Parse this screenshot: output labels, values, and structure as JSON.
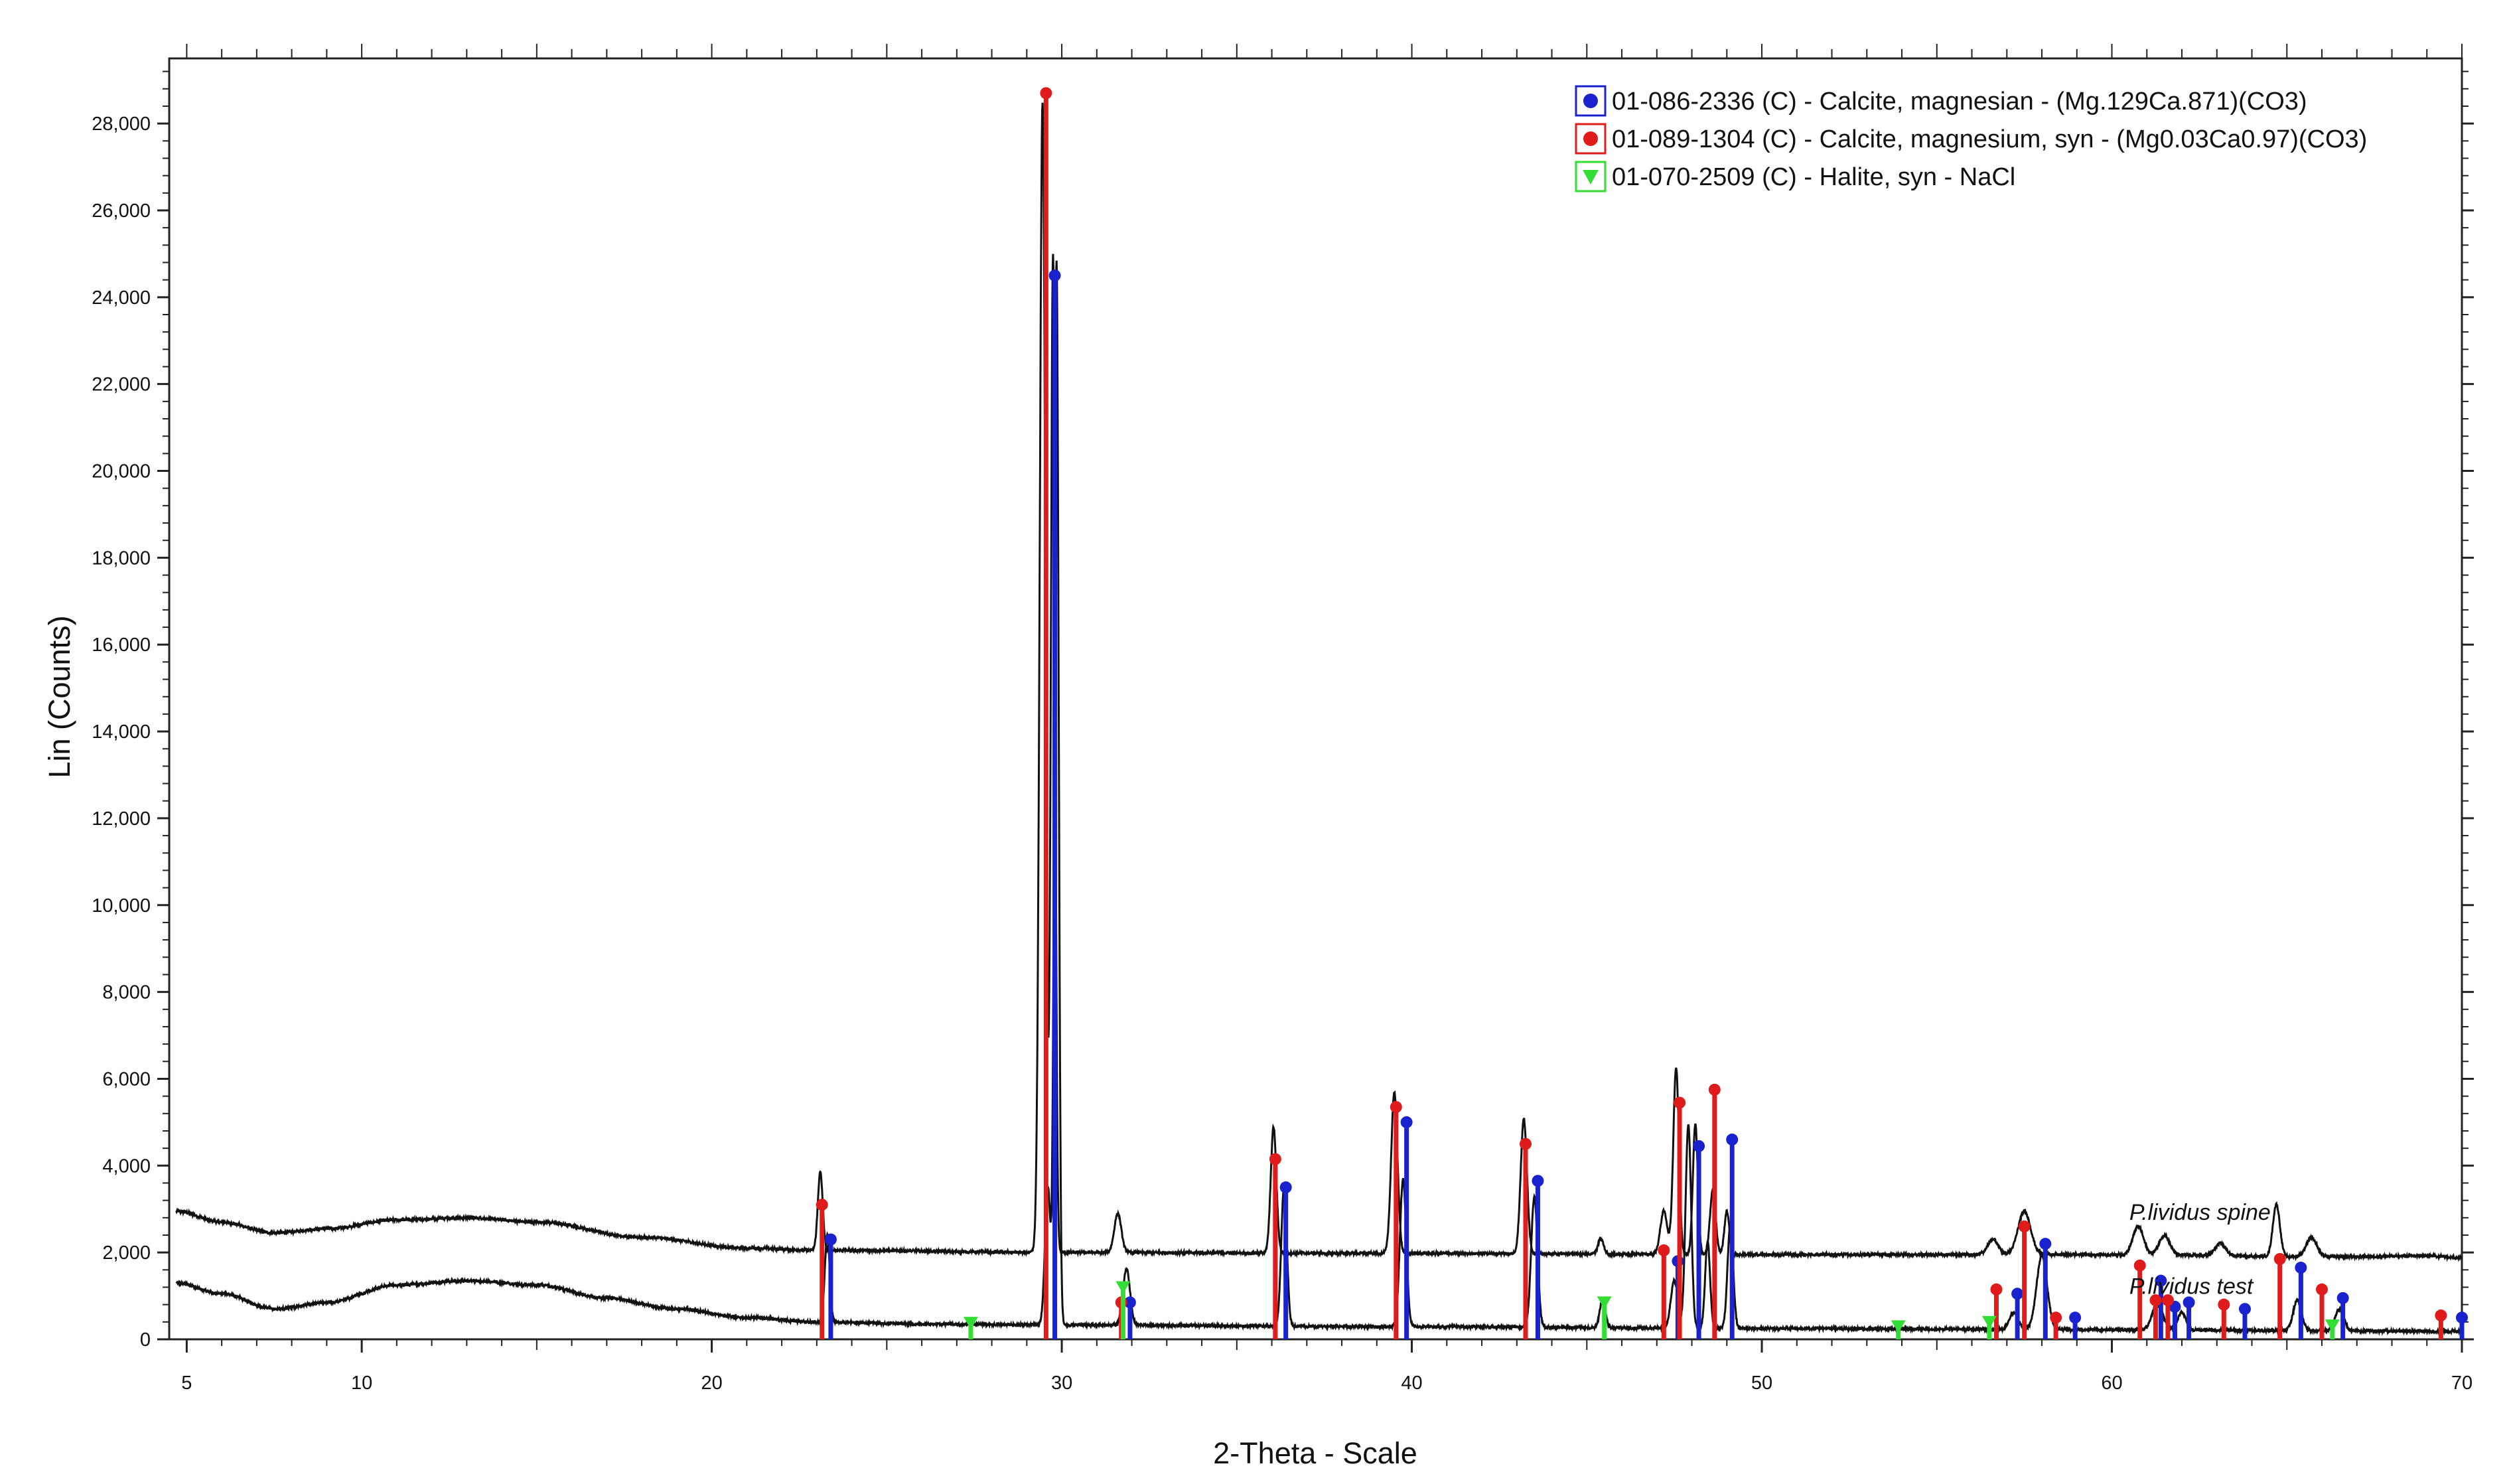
{
  "chart_data": {
    "type": "line",
    "xlabel": "2-Theta - Scale",
    "ylabel": "Lin (Counts)",
    "xlim": [
      4.5,
      70
    ],
    "ylim": [
      0,
      29500
    ],
    "x_ticks": [
      5,
      10,
      20,
      30,
      40,
      50,
      60,
      70
    ],
    "y_ticks": [
      0,
      2000,
      4000,
      6000,
      8000,
      10000,
      12000,
      14000,
      16000,
      18000,
      20000,
      22000,
      24000,
      26000,
      28000
    ],
    "y_tick_labels": [
      "0",
      "2,000",
      "4,000",
      "6,000",
      "8,000",
      "10,000",
      "12,000",
      "14,000",
      "16,000",
      "18,000",
      "20,000",
      "22,000",
      "24,000",
      "26,000",
      "28,000"
    ],
    "grid": false,
    "legend_position": "top-right",
    "series": [
      {
        "name": "P.lividus spine",
        "color": "#111111",
        "baseline": [
          [
            4.7,
            2950
          ],
          [
            6,
            2700
          ],
          [
            7.5,
            2450
          ],
          [
            9,
            2550
          ],
          [
            11,
            2750
          ],
          [
            13,
            2800
          ],
          [
            15,
            2700
          ],
          [
            18,
            2350
          ],
          [
            21,
            2100
          ],
          [
            23,
            2050
          ],
          [
            30,
            2000
          ],
          [
            40,
            1980
          ],
          [
            50,
            1950
          ],
          [
            60,
            1950
          ],
          [
            66,
            1900
          ],
          [
            69,
            1920
          ],
          [
            70,
            1880
          ]
        ],
        "peaks": [
          [
            23.1,
            1800,
            0.07
          ],
          [
            29.45,
            26500,
            0.08
          ],
          [
            29.75,
            23000,
            0.06
          ],
          [
            31.6,
            900,
            0.1
          ],
          [
            36.05,
            2900,
            0.08
          ],
          [
            39.5,
            3700,
            0.09
          ],
          [
            43.2,
            3100,
            0.09
          ],
          [
            45.4,
            350,
            0.08
          ],
          [
            47.2,
            1000,
            0.1
          ],
          [
            47.55,
            4300,
            0.08
          ],
          [
            48.1,
            3000,
            0.07
          ],
          [
            48.6,
            1500,
            0.08
          ],
          [
            49.0,
            1000,
            0.07
          ],
          [
            56.6,
            350,
            0.15
          ],
          [
            57.5,
            1000,
            0.18
          ],
          [
            60.75,
            650,
            0.15
          ],
          [
            61.5,
            450,
            0.15
          ],
          [
            63.1,
            280,
            0.15
          ],
          [
            64.7,
            1200,
            0.1
          ],
          [
            65.7,
            450,
            0.15
          ]
        ]
      },
      {
        "name": "P.lividus test",
        "color": "#111111",
        "baseline": [
          [
            4.7,
            1300
          ],
          [
            6,
            1050
          ],
          [
            7.5,
            700
          ],
          [
            9,
            850
          ],
          [
            11,
            1250
          ],
          [
            13,
            1350
          ],
          [
            15,
            1250
          ],
          [
            17,
            950
          ],
          [
            19,
            700
          ],
          [
            21,
            500
          ],
          [
            23,
            400
          ],
          [
            26,
            350
          ],
          [
            30,
            330
          ],
          [
            40,
            290
          ],
          [
            50,
            250
          ],
          [
            60,
            220
          ],
          [
            66,
            200
          ],
          [
            70,
            180
          ]
        ],
        "peaks": [
          [
            23.3,
            2000,
            0.07
          ],
          [
            29.6,
            3200,
            0.08
          ],
          [
            29.85,
            24500,
            0.06
          ],
          [
            31.85,
            1300,
            0.1
          ],
          [
            36.35,
            3200,
            0.08
          ],
          [
            39.75,
            3400,
            0.09
          ],
          [
            43.5,
            3000,
            0.09
          ],
          [
            45.45,
            650,
            0.08
          ],
          [
            47.5,
            1100,
            0.1
          ],
          [
            47.9,
            4700,
            0.08
          ],
          [
            48.45,
            2000,
            0.07
          ],
          [
            49.1,
            2400,
            0.08
          ],
          [
            57.2,
            400,
            0.12
          ],
          [
            58.0,
            1700,
            0.15
          ],
          [
            61.3,
            600,
            0.15
          ],
          [
            62.0,
            400,
            0.12
          ],
          [
            65.3,
            700,
            0.12
          ],
          [
            66.5,
            500,
            0.12
          ]
        ]
      }
    ],
    "trace_labels": [
      {
        "text": "P.lividus spine",
        "x": 60.5,
        "y": 2750
      },
      {
        "text": "P.lividus test",
        "x": 60.5,
        "y": 1050
      }
    ],
    "references": [
      {
        "name": "01-086-2336 (C) - Calcite, magnesian - (Mg.129Ca.871)(CO3)",
        "color": "#1a22d0",
        "marker": "circle",
        "sticks": [
          [
            23.4,
            2300
          ],
          [
            29.8,
            24500
          ],
          [
            31.95,
            850
          ],
          [
            36.4,
            3500
          ],
          [
            39.85,
            5000
          ],
          [
            43.6,
            3650
          ],
          [
            47.6,
            1800
          ],
          [
            48.2,
            4450
          ],
          [
            49.15,
            4600
          ],
          [
            57.3,
            1050
          ],
          [
            58.1,
            2200
          ],
          [
            58.95,
            500
          ],
          [
            61.4,
            1350
          ],
          [
            61.8,
            750
          ],
          [
            62.2,
            850
          ],
          [
            63.8,
            700
          ],
          [
            65.4,
            1650
          ],
          [
            66.6,
            950
          ],
          [
            70,
            500
          ]
        ]
      },
      {
        "name": "01-089-1304 (C) - Calcite, magnesium, syn - (Mg0.03Ca0.97)(CO3)",
        "color": "#e01b1b",
        "marker": "circle",
        "sticks": [
          [
            23.15,
            3100
          ],
          [
            29.55,
            28700
          ],
          [
            31.7,
            850
          ],
          [
            36.1,
            4150
          ],
          [
            39.55,
            5350
          ],
          [
            43.25,
            4500
          ],
          [
            47.2,
            2050
          ],
          [
            47.65,
            5450
          ],
          [
            48.65,
            5750
          ],
          [
            56.7,
            1150
          ],
          [
            57.5,
            2600
          ],
          [
            58.4,
            500
          ],
          [
            60.8,
            1700
          ],
          [
            61.25,
            900
          ],
          [
            61.6,
            900
          ],
          [
            63.2,
            800
          ],
          [
            64.8,
            1850
          ],
          [
            66.0,
            1150
          ],
          [
            69.4,
            550
          ]
        ]
      },
      {
        "name": "01-070-2509 (C) - Halite, syn - NaCl",
        "color": "#33dd33",
        "marker": "triangle",
        "sticks": [
          [
            27.4,
            380
          ],
          [
            31.75,
            1200
          ],
          [
            45.5,
            850
          ],
          [
            53.9,
            300
          ],
          [
            56.5,
            400
          ],
          [
            66.3,
            320
          ]
        ]
      }
    ]
  }
}
